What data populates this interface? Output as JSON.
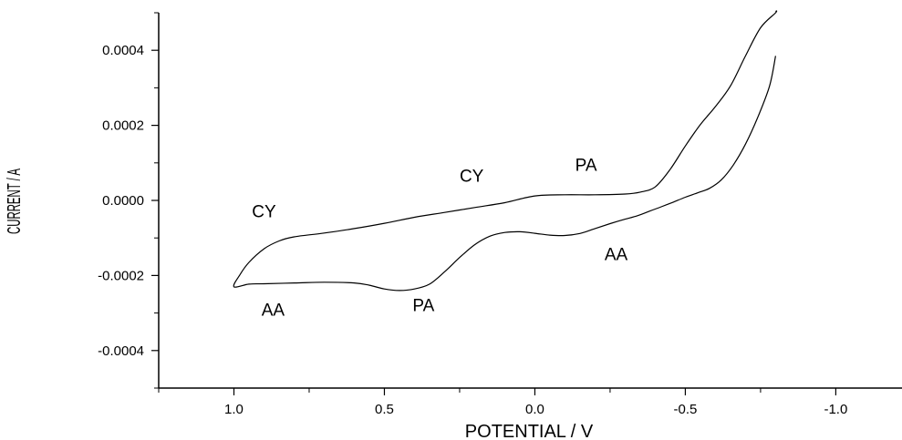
{
  "chart_data": {
    "type": "line",
    "title": "",
    "xlabel": "POTENTIAL / V",
    "ylabel": "CURRENT / A",
    "xlim": [
      1.25,
      -1.22
    ],
    "ylim": [
      -0.0005,
      0.0005
    ],
    "x_ticks": [
      1.0,
      0.5,
      0.0,
      -0.5,
      -1.0
    ],
    "x_tick_labels": [
      "1.0",
      "0.5",
      "0.0",
      "-0.5",
      "-1.0"
    ],
    "y_ticks": [
      -0.0004,
      -0.0002,
      0.0,
      0.0002,
      0.0004
    ],
    "y_tick_labels": [
      "-0.0004",
      "-0.0002",
      "0.0000",
      "0.0002",
      "0.0004"
    ],
    "grid": false,
    "legend": "none",
    "series": [
      {
        "x": [
          -0.8,
          -0.78,
          -0.74,
          -0.7,
          -0.66,
          -0.62,
          -0.58,
          -0.54,
          -0.5,
          -0.46,
          -0.42,
          -0.38,
          -0.34,
          -0.3,
          -0.25,
          -0.2,
          -0.15,
          -0.1,
          -0.05,
          0.0,
          0.05,
          0.1,
          0.15,
          0.2,
          0.25,
          0.3,
          0.35,
          0.4,
          0.45,
          0.5,
          0.55,
          0.6,
          0.7,
          0.8,
          0.9,
          0.95,
          1.0,
          0.98,
          0.95,
          0.9,
          0.85,
          0.8,
          0.7,
          0.6,
          0.5,
          0.4,
          0.3,
          0.2,
          0.1,
          0.0,
          -0.1,
          -0.2,
          -0.3,
          -0.35,
          -0.4,
          -0.45,
          -0.5,
          -0.55,
          -0.6,
          -0.65,
          -0.7,
          -0.75,
          -0.8,
          -0.8
        ],
        "y": [
          0.000385,
          0.000305,
          0.00022,
          0.00015,
          9.5e-05,
          5.5e-05,
          3.2e-05,
          2e-05,
          8.5e-06,
          -4.5e-06,
          -1.7e-05,
          -2.9e-05,
          -4.1e-05,
          -5e-05,
          -6.2e-05,
          -7.5e-05,
          -8.8e-05,
          -9.35e-05,
          -9.25e-05,
          -8.75e-05,
          -8.35e-05,
          -8.55e-05,
          -9.55e-05,
          -0.000118,
          -0.000152,
          -0.00019,
          -0.000223,
          -0.000236,
          -0.00024,
          -0.000236,
          -0.000226,
          -0.00022,
          -0.000218,
          -0.00022,
          -0.000222,
          -0.000223,
          -0.00023,
          -0.000198,
          -0.000165,
          -0.000129,
          -0.000108,
          -9.7e-05,
          -8.7e-05,
          -7.5e-05,
          -6.1e-05,
          -4.5e-05,
          -3.2e-05,
          -1.9e-05,
          -6e-06,
          1.2e-05,
          1.5e-05,
          1.5e-05,
          1.7e-05,
          2.2e-05,
          3.6e-05,
          8.3e-05,
          0.000145,
          0.000202,
          0.00025,
          0.000305,
          0.000385,
          0.00046,
          0.0005,
          0.000505
        ]
      }
    ],
    "annotations": [
      {
        "text": "CY",
        "x": 0.9,
        "y": -4.5e-05
      },
      {
        "text": "CY",
        "x": 0.21,
        "y": 5e-05
      },
      {
        "text": "PA",
        "x": -0.17,
        "y": 7.85e-05
      },
      {
        "text": "AA",
        "x": -0.27,
        "y": -0.000159
      },
      {
        "text": "AA",
        "x": 0.87,
        "y": -0.0003075
      },
      {
        "text": "PA",
        "x": 0.37,
        "y": -0.0002955
      }
    ]
  }
}
